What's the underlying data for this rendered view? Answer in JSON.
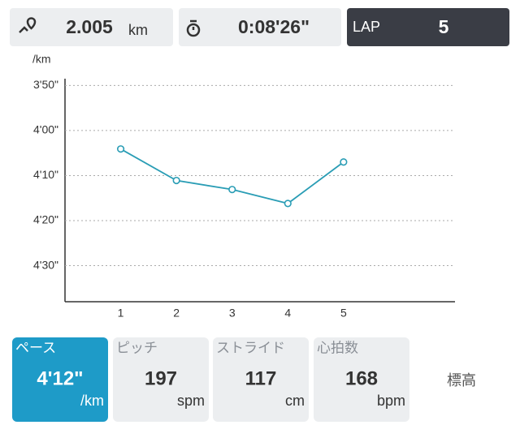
{
  "header": {
    "distance": "2.005",
    "distance_unit": "km",
    "time": "0:08'26\"",
    "lap_label": "LAP",
    "lap": 5
  },
  "chart_data": {
    "type": "line",
    "y_unit": "/km",
    "x": [
      1,
      2,
      3,
      4,
      5
    ],
    "xlim": [
      0,
      7
    ],
    "xticks": [
      1,
      2,
      3,
      4,
      5
    ],
    "ylim": [
      278,
      228.5
    ],
    "yticks": [
      {
        "value": 230,
        "label": "3'50\""
      },
      {
        "value": 240,
        "label": "4'00\""
      },
      {
        "value": 250,
        "label": "4'10\""
      },
      {
        "value": 260,
        "label": "4'20\""
      },
      {
        "value": 270,
        "label": "4'30\""
      }
    ],
    "grid": true,
    "series": [
      {
        "color": "#2a9db5",
        "values": [
          244.1,
          251.1,
          253.1,
          256.2,
          247.0
        ]
      }
    ]
  },
  "metrics": [
    {
      "label": "ペース",
      "value": "4'12\"",
      "unit": "/km",
      "active": true
    },
    {
      "label": "ピッチ",
      "value": 197,
      "unit": "spm",
      "active": false
    },
    {
      "label": "ストライド",
      "value": 117,
      "unit": "cm",
      "active": false
    },
    {
      "label": "心拍数",
      "value": 168,
      "unit": "bpm",
      "active": false
    },
    {
      "label": "標高"
    }
  ]
}
